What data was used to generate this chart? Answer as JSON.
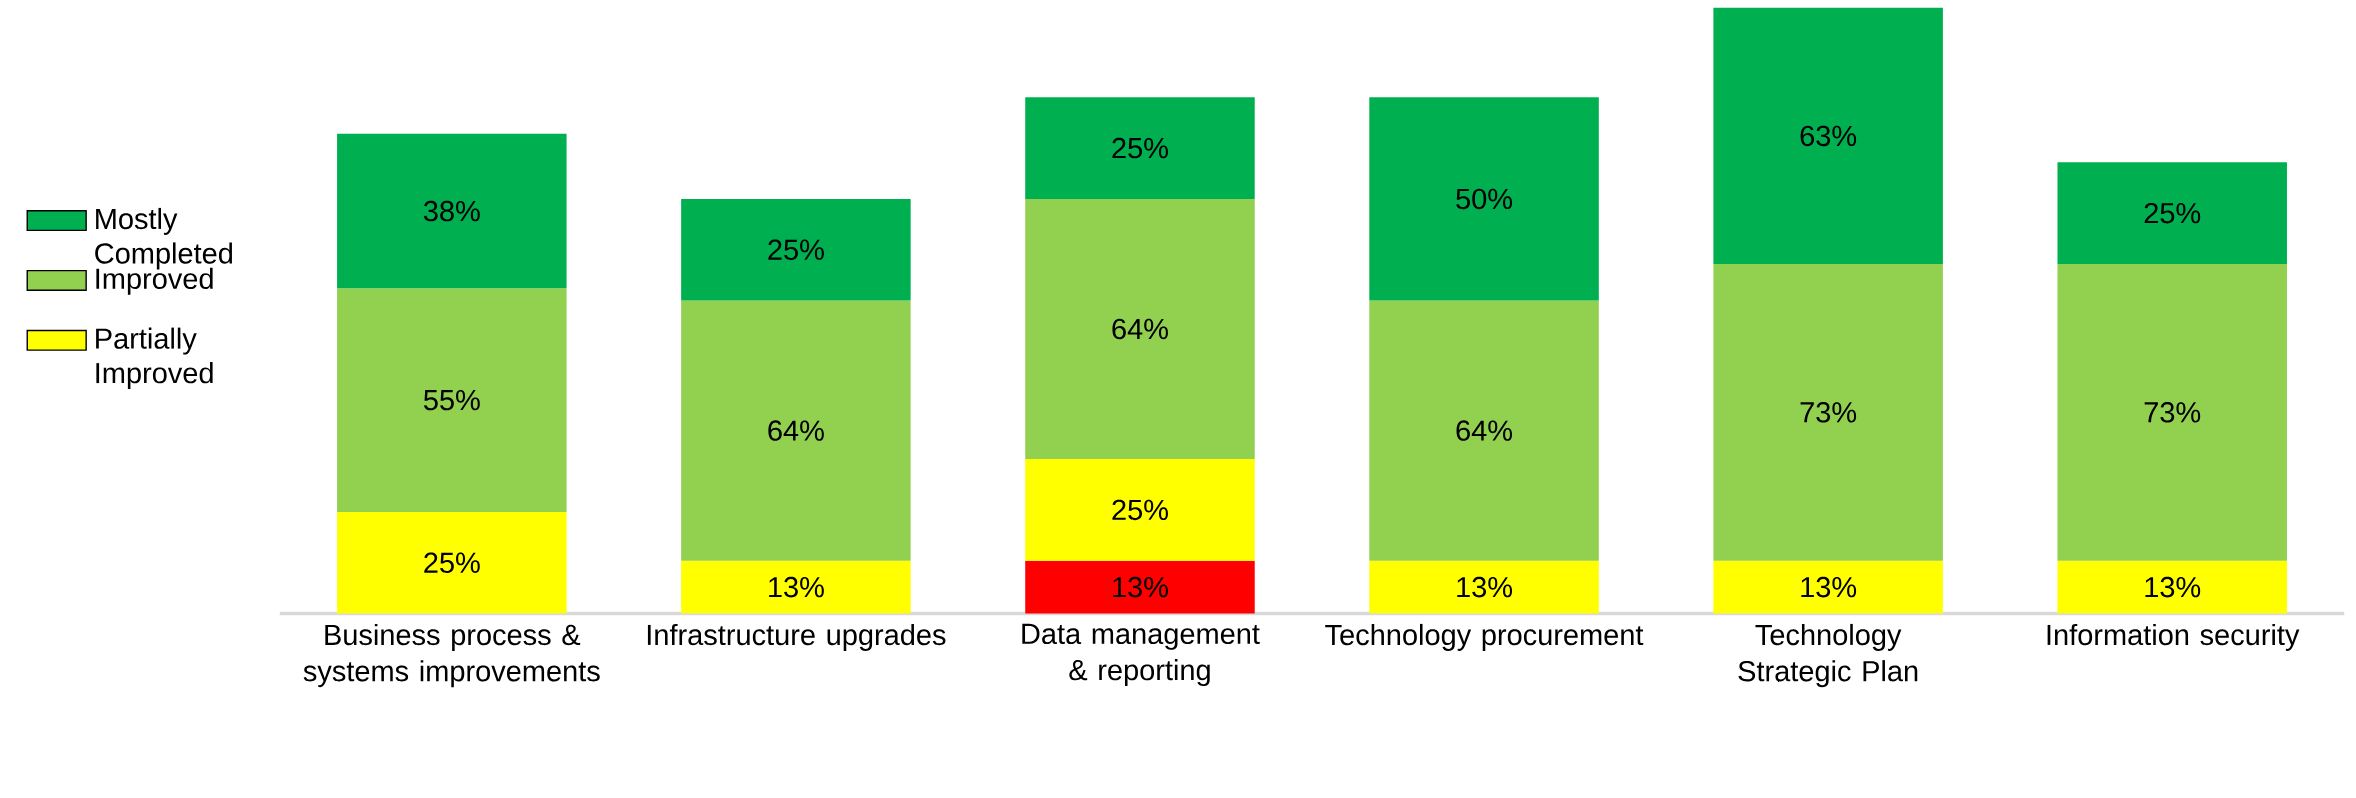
{
  "chart_data": {
    "type": "bar",
    "stacked": true,
    "legend": "left",
    "categories": [
      "Business process & systems improvements",
      "Infrastructure upgrades",
      "Data management & reporting",
      "Technology procurement",
      "Technology Strategic Plan",
      "Information security"
    ],
    "series": [
      {
        "color": "#ff0000",
        "values": [
          null,
          null,
          13,
          null,
          null,
          null
        ],
        "value_labels": [
          null,
          null,
          "13%",
          null,
          null,
          null
        ]
      },
      {
        "name": "Partially Improved",
        "color": "#ffff00",
        "values": [
          25,
          13,
          25,
          13,
          13,
          13
        ],
        "value_labels": [
          "25%",
          "13%",
          "25%",
          "13%",
          "13%",
          "13%"
        ]
      },
      {
        "name": "Improved",
        "color": "#92d050",
        "values": [
          55,
          64,
          64,
          64,
          73,
          73
        ],
        "value_labels": [
          "55%",
          "64%",
          "64%",
          "64%",
          "73%",
          "73%"
        ]
      },
      {
        "name": "Mostly Completed",
        "color": "#00b050",
        "values": [
          38,
          25,
          25,
          50,
          63,
          25
        ],
        "value_labels": [
          "38%",
          "25%",
          "25%",
          "50%",
          "63%",
          "25%"
        ]
      }
    ]
  }
}
